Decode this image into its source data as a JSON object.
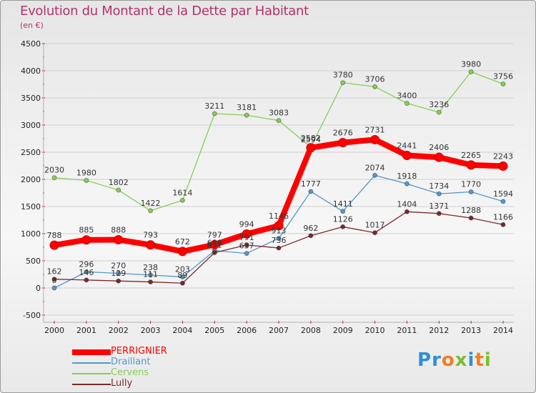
{
  "header": {
    "title": "Evolution du Montant de la Dette par Habitant",
    "unit": "(en €)"
  },
  "colors": {
    "title": "#b2336c",
    "grid": "#cfcfcf",
    "tick_mark": "#cc2222"
  },
  "logo": {
    "letters": [
      {
        "char": "P",
        "color": "#2e8fd6"
      },
      {
        "char": "r",
        "color": "#2e8fd6"
      },
      {
        "char": "o",
        "color": "#f07f1d"
      },
      {
        "char": "x",
        "color": "#7dbd2f"
      },
      {
        "char": "i",
        "color": "#2e8fd6"
      },
      {
        "char": "t",
        "color": "#f07f1d"
      },
      {
        "char": "i",
        "color": "#7dbd2f"
      }
    ]
  },
  "chart_data": {
    "type": "line",
    "title": "Evolution du Montant de la Dette par Habitant",
    "subtitle": "(en €)",
    "x": [
      2000,
      2001,
      2002,
      2003,
      2004,
      2005,
      2006,
      2007,
      2008,
      2009,
      2010,
      2011,
      2012,
      2013,
      2014
    ],
    "ylim": [
      -500,
      4500
    ],
    "yticks": [
      -500,
      0,
      500,
      1000,
      1500,
      2000,
      2500,
      3000,
      3500,
      4000,
      4500
    ],
    "grid": "horizontal",
    "legend_position": "bottom-left",
    "series": [
      {
        "name": "PERRIGNIER",
        "color": "#ff0000",
        "width": "bold",
        "values": [
          788,
          885,
          888,
          793,
          672,
          797,
          994,
          1146,
          2582,
          2676,
          2731,
          2441,
          2406,
          2265,
          2243
        ]
      },
      {
        "name": "Draillant",
        "color": "#5598c8",
        "values": [
          0,
          296,
          270,
          238,
          203,
          688,
          637,
          913,
          1777,
          1411,
          2074,
          1918,
          1734,
          1770,
          1594
        ]
      },
      {
        "name": "Cervens",
        "color": "#88cc55",
        "values": [
          2030,
          1980,
          1802,
          1422,
          1614,
          3211,
          3181,
          3083,
          2594,
          3780,
          3706,
          3400,
          3236,
          3980,
          3756
        ]
      },
      {
        "name": "Lully",
        "color": "#7a2a2e",
        "values": [
          162,
          146,
          129,
          111,
          89,
          651,
          791,
          736,
          962,
          1126,
          1017,
          1404,
          1371,
          1288,
          1166
        ]
      }
    ]
  }
}
